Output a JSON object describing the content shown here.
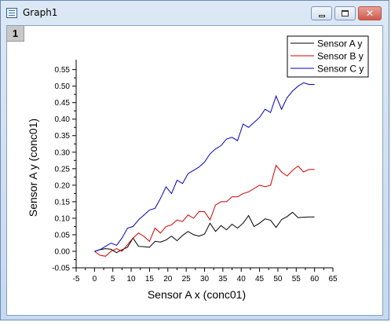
{
  "window": {
    "title": "Graph1",
    "layer_label": "1"
  },
  "chart_data": {
    "type": "line",
    "xlabel": "Sensor A x (conc01)",
    "ylabel": "Sensor A y (conc01)",
    "xlim": [
      -5,
      65
    ],
    "ylim": [
      -0.05,
      0.58
    ],
    "xticks": [
      -5,
      0,
      5,
      10,
      15,
      20,
      25,
      30,
      35,
      40,
      45,
      50,
      55,
      60,
      65
    ],
    "yticks": [
      -0.05,
      0,
      0.05,
      0.1,
      0.15,
      0.2,
      0.25,
      0.3,
      0.35,
      0.4,
      0.45,
      0.5,
      0.55
    ],
    "xtick_labels": [
      "-5",
      "0",
      "5",
      "10",
      "15",
      "20",
      "25",
      "30",
      "35",
      "40",
      "45",
      "50",
      "55",
      "60",
      "65"
    ],
    "ytick_labels": [
      "-0.05",
      "0.00",
      "0.05",
      "0.10",
      "0.15",
      "0.20",
      "0.25",
      "0.30",
      "0.35",
      "0.40",
      "0.45",
      "0.50",
      "0.55"
    ],
    "grid": false,
    "legend_position": "top-right",
    "x": [
      0,
      1.5,
      3,
      4.5,
      6,
      7.5,
      9,
      10.5,
      12,
      13.5,
      15,
      16.5,
      18,
      19.5,
      21,
      22.5,
      24,
      25.5,
      27,
      28.5,
      30,
      31.5,
      33,
      34.5,
      36,
      37.5,
      39,
      40.5,
      42,
      43.5,
      45,
      46.5,
      48,
      49.5,
      51,
      52.5,
      54,
      55.5,
      57,
      58.5,
      60
    ],
    "series": [
      {
        "name": "Sensor A y",
        "color": "#000000",
        "values": [
          0.0,
          0.005,
          0.008,
          0.006,
          -0.004,
          0.005,
          0.012,
          0.04,
          0.015,
          0.014,
          0.012,
          0.03,
          0.028,
          0.034,
          0.046,
          0.032,
          0.048,
          0.06,
          0.05,
          0.046,
          0.052,
          0.085,
          0.06,
          0.078,
          0.065,
          0.082,
          0.07,
          0.085,
          0.108,
          0.075,
          0.085,
          0.098,
          0.094,
          0.072,
          0.096,
          0.105,
          0.118,
          0.102,
          0.103,
          0.104,
          0.104
        ]
      },
      {
        "name": "Sensor B y",
        "color": "#d40000",
        "values": [
          0.0,
          -0.012,
          -0.015,
          0.0,
          0.008,
          0.0,
          0.02,
          0.04,
          0.055,
          0.045,
          0.03,
          0.07,
          0.055,
          0.075,
          0.08,
          0.095,
          0.09,
          0.11,
          0.1,
          0.12,
          0.12,
          0.095,
          0.14,
          0.15,
          0.15,
          0.165,
          0.165,
          0.175,
          0.18,
          0.19,
          0.2,
          0.195,
          0.2,
          0.26,
          0.24,
          0.228,
          0.245,
          0.258,
          0.24,
          0.248,
          0.248
        ]
      },
      {
        "name": "Sensor C y",
        "color": "#0000c0",
        "values": [
          0.0,
          0.005,
          0.015,
          0.025,
          0.018,
          0.04,
          0.07,
          0.075,
          0.095,
          0.11,
          0.125,
          0.13,
          0.16,
          0.195,
          0.175,
          0.215,
          0.205,
          0.235,
          0.245,
          0.255,
          0.27,
          0.295,
          0.31,
          0.32,
          0.34,
          0.345,
          0.335,
          0.385,
          0.375,
          0.39,
          0.405,
          0.43,
          0.42,
          0.47,
          0.43,
          0.465,
          0.485,
          0.5,
          0.51,
          0.505,
          0.505
        ]
      }
    ]
  }
}
